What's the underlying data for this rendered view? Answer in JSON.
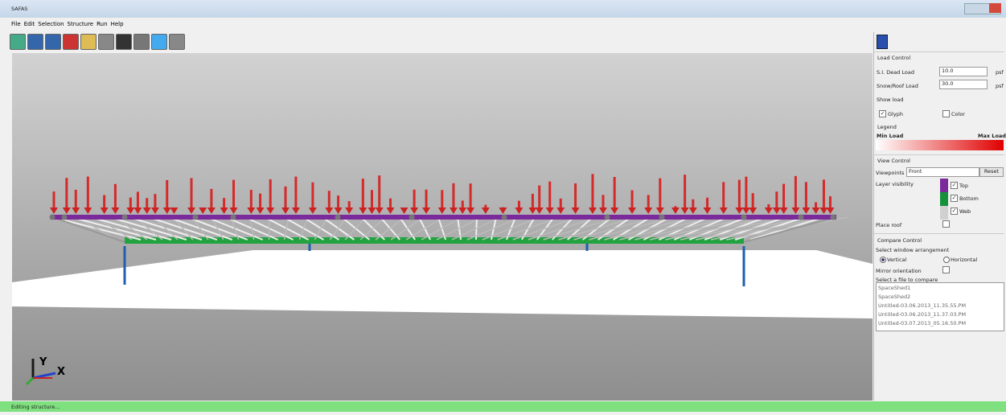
{
  "window": {
    "title": "SAFAS"
  },
  "menu": [
    "File",
    "Edit",
    "Selection",
    "Structure",
    "Run",
    "Help"
  ],
  "viewport": {
    "axis_y": "Y",
    "axis_x": "X"
  },
  "panel": {
    "load_control": {
      "title": "Load Control",
      "dead_load": {
        "label": "S.I. Dead Load",
        "value": "10.0",
        "unit": "psf"
      },
      "snow_load": {
        "label": "Snow/Roof Load",
        "value": "30.0",
        "unit": "psf"
      },
      "show_load": "Show load",
      "glyph": "Glyph",
      "color": "Color",
      "legend": "Legend",
      "min_load": "Min Load",
      "max_load": "Max Load"
    },
    "view_control": {
      "title": "View Control",
      "viewpoints": "Viewpoints",
      "viewpoint_value": "Front",
      "reset": "Reset",
      "layer_visibility": "Layer visibility",
      "top": "Top",
      "bottom": "Bottom",
      "web": "Web",
      "place_roof": "Place roof"
    },
    "compare_control": {
      "title": "Compare Control",
      "arrangement": "Select window arrangement",
      "vertical": "Vertical",
      "horizontal": "Horizontal",
      "mirror": "Mirror orientation",
      "select_file": "Select a file to compare",
      "files": [
        "SpaceShed1",
        "SpaceShed2",
        "Untitled-03.06.2013_11.35.55.PM",
        "Untitled-03.06.2013_11.37.03.PM",
        "Untitled-03.07.2013_05.16.50.PM"
      ]
    }
  },
  "status": "Editing structure..."
}
